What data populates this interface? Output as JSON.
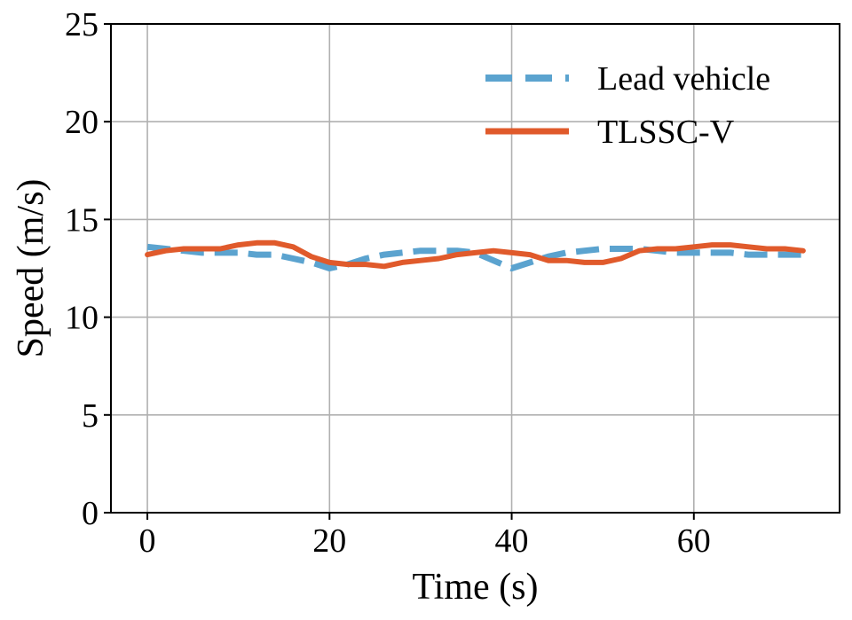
{
  "chart_data": {
    "type": "line",
    "title": "",
    "xlabel": "Time (s)",
    "ylabel": "Speed (m/s)",
    "xlim": [
      -4,
      76
    ],
    "ylim": [
      0,
      25
    ],
    "xticks": [
      0,
      20,
      40,
      60
    ],
    "yticks": [
      0,
      5,
      10,
      15,
      20,
      25
    ],
    "grid": true,
    "legend_position": "top-right",
    "series": [
      {
        "name": "Lead vehicle",
        "color": "#5ba3cf",
        "style": "dashed",
        "x": [
          0,
          2,
          4,
          6,
          8,
          10,
          12,
          14,
          16,
          18,
          20,
          22,
          24,
          26,
          28,
          30,
          32,
          34,
          36,
          38,
          40,
          42,
          44,
          46,
          48,
          50,
          52,
          54,
          56,
          58,
          60,
          62,
          64,
          66,
          68,
          70,
          72
        ],
        "values": [
          13.6,
          13.5,
          13.4,
          13.3,
          13.3,
          13.3,
          13.2,
          13.2,
          13.0,
          12.8,
          12.5,
          12.7,
          13.0,
          13.2,
          13.3,
          13.4,
          13.4,
          13.4,
          13.3,
          12.9,
          12.5,
          12.8,
          13.1,
          13.3,
          13.4,
          13.5,
          13.5,
          13.5,
          13.4,
          13.3,
          13.3,
          13.3,
          13.3,
          13.2,
          13.2,
          13.2,
          13.2
        ]
      },
      {
        "name": "TLSSC-V",
        "color": "#e05a2b",
        "style": "solid",
        "x": [
          0,
          2,
          4,
          6,
          8,
          10,
          12,
          14,
          16,
          18,
          20,
          22,
          24,
          26,
          28,
          30,
          32,
          34,
          36,
          38,
          40,
          42,
          44,
          46,
          48,
          50,
          52,
          54,
          56,
          58,
          60,
          62,
          64,
          66,
          68,
          70,
          72
        ],
        "values": [
          13.2,
          13.4,
          13.5,
          13.5,
          13.5,
          13.7,
          13.8,
          13.8,
          13.6,
          13.1,
          12.8,
          12.7,
          12.7,
          12.6,
          12.8,
          12.9,
          13.0,
          13.2,
          13.3,
          13.4,
          13.3,
          13.2,
          12.9,
          12.9,
          12.8,
          12.8,
          13.0,
          13.4,
          13.5,
          13.5,
          13.6,
          13.7,
          13.7,
          13.6,
          13.5,
          13.5,
          13.4
        ]
      }
    ]
  }
}
